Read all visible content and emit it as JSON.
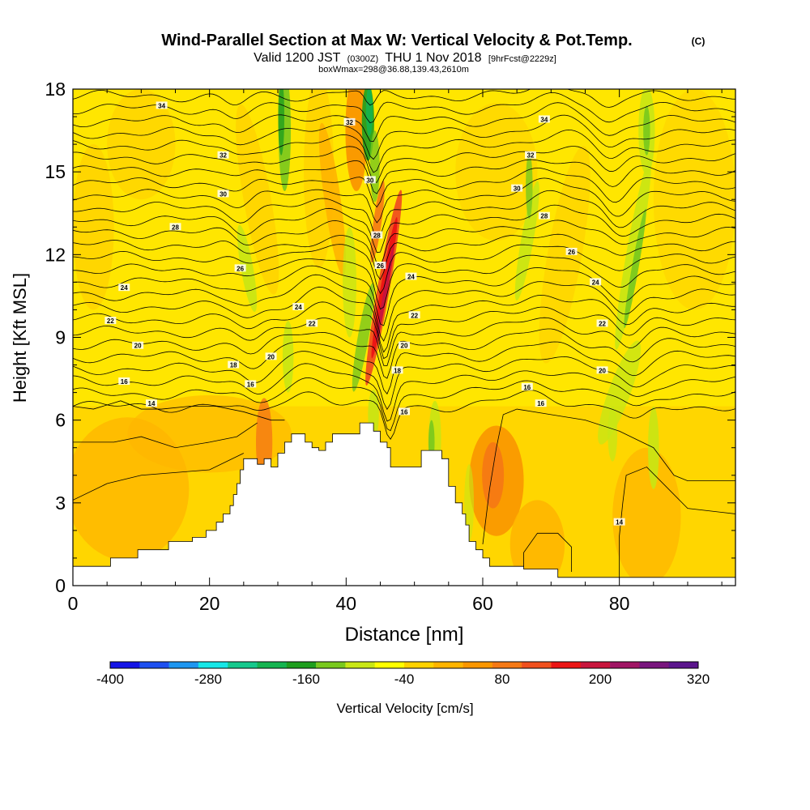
{
  "chart_data": {
    "type": "heatmap",
    "title": "Wind-Parallel Section at Max W: Vertical Velocity & Pot.Temp.",
    "title_suffix": "(C)",
    "subtitle": {
      "valid": "Valid 1200 JST",
      "utc": "(0300Z)",
      "date": "THU 1 Nov 2018",
      "forecast": "[9hrFcst@2229z]"
    },
    "info": "boxWmax=298@36.88,139.43,2610m",
    "xlabel": "Distance [nm]",
    "ylabel": "Height [Kft MSL]",
    "xlim": [
      0,
      97
    ],
    "ylim": [
      0,
      18
    ],
    "x_ticks": [
      0,
      20,
      40,
      60,
      80
    ],
    "y_ticks": [
      0,
      3,
      6,
      9,
      12,
      15,
      18
    ],
    "colorbar": {
      "label": "Vertical Velocity [cm/s]",
      "tick_labels": [
        "-400",
        "-280",
        "-160",
        "-40",
        "80",
        "200",
        "320"
      ],
      "min": -400,
      "max": 320,
      "colors": [
        "#1414e6",
        "#1e50f0",
        "#1e96f0",
        "#14e6e6",
        "#14c88c",
        "#14b450",
        "#1e9e1e",
        "#78c81e",
        "#c8e614",
        "#ffff00",
        "#ffd200",
        "#ffb400",
        "#fa9600",
        "#f57814",
        "#f0501e",
        "#eb1414",
        "#c8143c",
        "#a01464",
        "#78147d",
        "#5a148c"
      ]
    },
    "contour_labels": [
      {
        "x": 13,
        "y": 17.4,
        "text": "34"
      },
      {
        "x": 69,
        "y": 16.9,
        "text": "34"
      },
      {
        "x": 40.5,
        "y": 16.8,
        "text": "32"
      },
      {
        "x": 22,
        "y": 15.6,
        "text": "32"
      },
      {
        "x": 67,
        "y": 15.6,
        "text": "32"
      },
      {
        "x": 43.5,
        "y": 14.7,
        "text": "30"
      },
      {
        "x": 22,
        "y": 14.2,
        "text": "30"
      },
      {
        "x": 65,
        "y": 14.4,
        "text": "30"
      },
      {
        "x": 15,
        "y": 13.0,
        "text": "28"
      },
      {
        "x": 69,
        "y": 13.4,
        "text": "28"
      },
      {
        "x": 44.5,
        "y": 12.7,
        "text": "28"
      },
      {
        "x": 73,
        "y": 12.1,
        "text": "26"
      },
      {
        "x": 24.5,
        "y": 11.5,
        "text": "26"
      },
      {
        "x": 45,
        "y": 11.6,
        "text": "26"
      },
      {
        "x": 7.5,
        "y": 10.8,
        "text": "24"
      },
      {
        "x": 33,
        "y": 10.1,
        "text": "24"
      },
      {
        "x": 49.5,
        "y": 11.2,
        "text": "24"
      },
      {
        "x": 76.5,
        "y": 11.0,
        "text": "24"
      },
      {
        "x": 5.5,
        "y": 9.6,
        "text": "22"
      },
      {
        "x": 35,
        "y": 9.5,
        "text": "22"
      },
      {
        "x": 50,
        "y": 9.8,
        "text": "22"
      },
      {
        "x": 77.5,
        "y": 9.5,
        "text": "22"
      },
      {
        "x": 9.5,
        "y": 8.7,
        "text": "20"
      },
      {
        "x": 29,
        "y": 8.3,
        "text": "20"
      },
      {
        "x": 48.5,
        "y": 8.7,
        "text": "20"
      },
      {
        "x": 77.5,
        "y": 7.8,
        "text": "20"
      },
      {
        "x": 23.5,
        "y": 8.0,
        "text": "18"
      },
      {
        "x": 47.5,
        "y": 7.8,
        "text": "18"
      },
      {
        "x": 7.5,
        "y": 7.4,
        "text": "16"
      },
      {
        "x": 26,
        "y": 7.3,
        "text": "16"
      },
      {
        "x": 66.5,
        "y": 7.2,
        "text": "16"
      },
      {
        "x": 11.5,
        "y": 6.6,
        "text": "14"
      },
      {
        "x": 48.5,
        "y": 6.3,
        "text": "16"
      },
      {
        "x": 68.5,
        "y": 6.6,
        "text": "16"
      },
      {
        "x": 80,
        "y": 2.3,
        "text": "14"
      }
    ]
  }
}
